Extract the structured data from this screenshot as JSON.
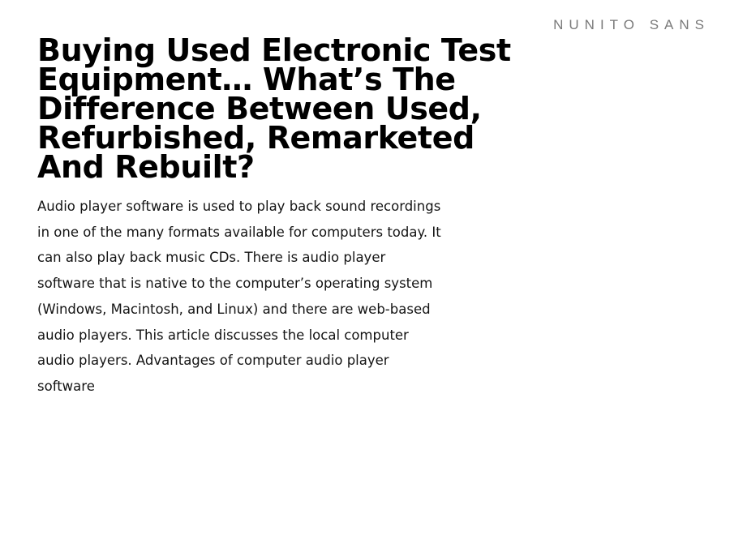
{
  "site": {
    "brand": "NUNITO SANS"
  },
  "article": {
    "title": "Buying Used Electronic Test Equipment… What’s The Difference Between Used, Refurbished, Remarketed And Rebuilt?",
    "excerpt": "Audio player software is used to play back sound recordings in one of the many formats available for computers today. It can also play back music CDs. There is audio player software that is native to the computer’s operating system (Windows, Macintosh, and Linux) and there are web-based audio players. This article discusses the local computer audio players. Advantages of computer audio player software"
  }
}
